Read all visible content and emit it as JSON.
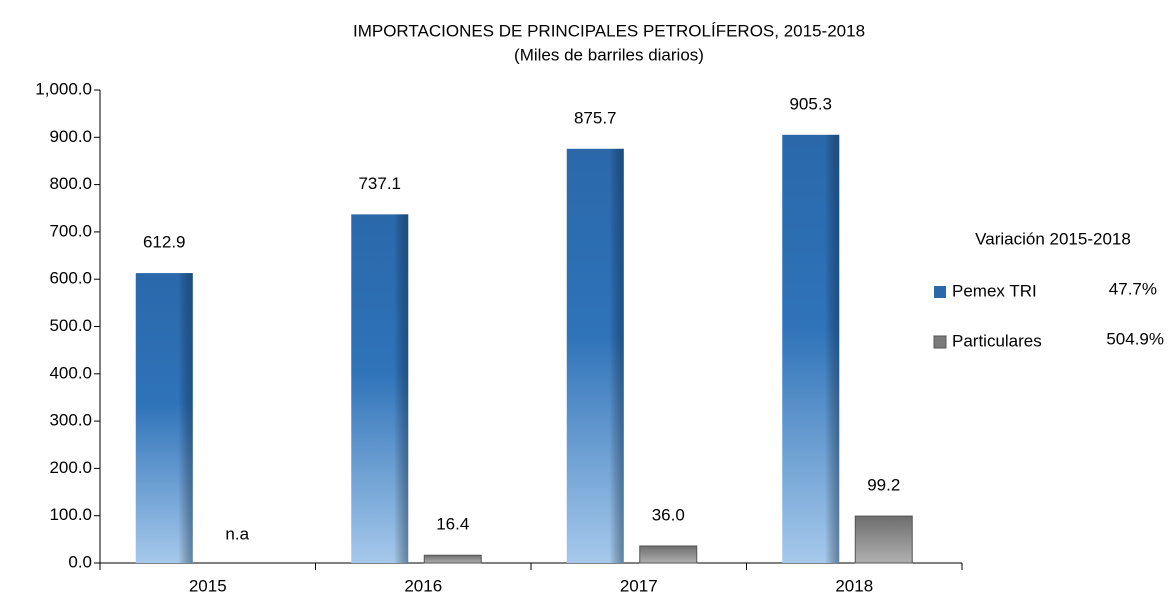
{
  "chart_data": {
    "type": "bar",
    "title": "IMPORTACIONES DE PRINCIPALES PETROLÍFEROS, 2015-2018",
    "subtitle": "(Miles de barriles diarios)",
    "categories": [
      "2015",
      "2016",
      "2017",
      "2018"
    ],
    "series": [
      {
        "name": "Pemex TRI",
        "color": "#2e72b8",
        "values": [
          612.9,
          737.1,
          875.7,
          905.3
        ],
        "variation": "47.7%"
      },
      {
        "name": "Particulares",
        "color": "#8c8c8c",
        "values": [
          null,
          16.4,
          36.0,
          99.2
        ],
        "value_labels": [
          "n.a",
          "16.4",
          "36.0",
          "99.2"
        ],
        "variation": "504.9%"
      }
    ],
    "legend_title": "Variación 2015-2018",
    "legend": "right",
    "ylim": [
      0,
      1000
    ],
    "yticks": [
      {
        "value": 0,
        "label": "0.0"
      },
      {
        "value": 100,
        "label": "100.0"
      },
      {
        "value": 200,
        "label": "200.0"
      },
      {
        "value": 300,
        "label": "300.0"
      },
      {
        "value": 400,
        "label": "400.0"
      },
      {
        "value": 500,
        "label": "500.0"
      },
      {
        "value": 600,
        "label": "600.0"
      },
      {
        "value": 700,
        "label": "700.0"
      },
      {
        "value": 800,
        "label": "800.0"
      },
      {
        "value": 900,
        "label": "900.0"
      },
      {
        "value": 1000,
        "label": "1,000.0"
      }
    ],
    "grid": false
  }
}
